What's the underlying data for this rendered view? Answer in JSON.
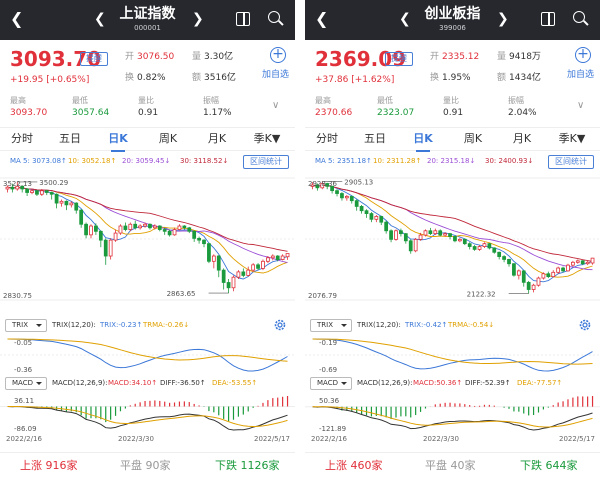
{
  "panels": [
    {
      "title": "上证指数",
      "code": "000001",
      "price": "3093.70",
      "remind_label": "提醒",
      "change": "+19.95",
      "change_pct": "[+0.65%]",
      "open_label": "开",
      "open": "3076.50",
      "turnover_rate_label": "换",
      "turnover_rate": "0.82%",
      "volume_label": "量",
      "volume": "3.30亿",
      "amount_label": "额",
      "amount": "3516亿",
      "add_label": "加自选",
      "high_label": "最高",
      "high": "3093.70",
      "low_label": "最低",
      "low": "3057.64",
      "vol_ratio_label": "量比",
      "vol_ratio": "0.91",
      "amplitude_label": "振幅",
      "amplitude": "1.17%",
      "ma": [
        {
          "label": "MA 5: 3073.08↑",
          "color": "#3c78d8"
        },
        {
          "label": "10: 3052.18↑",
          "color": "#e0a000"
        },
        {
          "label": "20: 3059.45↓",
          "color": "#9b4fd6"
        },
        {
          "label": "30: 3118.52↓",
          "color": "#c0283a"
        }
      ],
      "stat_label": "区间统计",
      "kline_high_label": "3500.29",
      "kline_low_label": "2863.65",
      "axis_top": "3522.13",
      "axis_bottom": "2830.75",
      "trix_btn": "TRIX",
      "trix_params": "TRIX(12,20):",
      "trix_val": "TRIX:-0.23↑",
      "trma_val": "TRMA:-0.26↓",
      "trix_top": "-0.05",
      "trix_bottom": "-0.36",
      "macd_btn": "MACD",
      "macd_params": "MACD(12,26,9):",
      "macd_val": "MACD:34.10↑",
      "diff_val": "DIFF:-36.50↑",
      "dea_val": "DEA:-53.55↑",
      "macd_top": "36.11",
      "macd_bottom": "-86.09",
      "date_start": "2022/2/16",
      "date_mid": "2022/3/30",
      "date_end": "2022/5/17",
      "rise_label": "上涨",
      "rise": "916家",
      "flat_label": "平盘",
      "flat": "90家",
      "fall_label": "下跌",
      "fall": "1126家",
      "k": [
        [
          3460,
          3470,
          3440,
          3480
        ],
        [
          3470,
          3460,
          3440,
          3490
        ],
        [
          3460,
          3475,
          3450,
          3500
        ],
        [
          3475,
          3460,
          3440,
          3480
        ],
        [
          3460,
          3440,
          3420,
          3465
        ],
        [
          3440,
          3450,
          3430,
          3460
        ],
        [
          3450,
          3430,
          3420,
          3455
        ],
        [
          3430,
          3450,
          3420,
          3460
        ],
        [
          3450,
          3440,
          3425,
          3455
        ],
        [
          3440,
          3430,
          3400,
          3445
        ],
        [
          3430,
          3380,
          3350,
          3435
        ],
        [
          3380,
          3390,
          3360,
          3400
        ],
        [
          3390,
          3370,
          3340,
          3395
        ],
        [
          3370,
          3380,
          3355,
          3390
        ],
        [
          3380,
          3340,
          3320,
          3385
        ],
        [
          3340,
          3260,
          3240,
          3345
        ],
        [
          3260,
          3200,
          3180,
          3270
        ],
        [
          3200,
          3250,
          3180,
          3260
        ],
        [
          3250,
          3220,
          3200,
          3265
        ],
        [
          3220,
          3170,
          3130,
          3225
        ],
        [
          3170,
          3080,
          3030,
          3180
        ],
        [
          3080,
          3170,
          3060,
          3180
        ],
        [
          3170,
          3210,
          3160,
          3230
        ],
        [
          3210,
          3250,
          3200,
          3260
        ],
        [
          3250,
          3230,
          3220,
          3270
        ],
        [
          3230,
          3260,
          3220,
          3270
        ],
        [
          3260,
          3240,
          3230,
          3280
        ],
        [
          3240,
          3250,
          3230,
          3260
        ],
        [
          3250,
          3260,
          3240,
          3270
        ],
        [
          3260,
          3240,
          3230,
          3265
        ],
        [
          3240,
          3250,
          3230,
          3260
        ],
        [
          3250,
          3230,
          3220,
          3255
        ],
        [
          3230,
          3220,
          3200,
          3240
        ],
        [
          3220,
          3200,
          3190,
          3230
        ],
        [
          3200,
          3230,
          3195,
          3240
        ],
        [
          3230,
          3250,
          3225,
          3260
        ],
        [
          3250,
          3240,
          3230,
          3255
        ],
        [
          3240,
          3220,
          3210,
          3245
        ],
        [
          3220,
          3180,
          3160,
          3225
        ],
        [
          3180,
          3170,
          3150,
          3190
        ],
        [
          3170,
          3150,
          3130,
          3175
        ],
        [
          3150,
          3050,
          3040,
          3155
        ],
        [
          3050,
          3080,
          3010,
          3090
        ],
        [
          3080,
          3000,
          2960,
          3085
        ],
        [
          3000,
          2930,
          2890,
          3010
        ],
        [
          2930,
          2900,
          2870,
          2950
        ],
        [
          2900,
          2960,
          2880,
          2970
        ],
        [
          2960,
          2990,
          2950,
          3000
        ],
        [
          2990,
          2970,
          2960,
          3010
        ],
        [
          2970,
          3000,
          2965,
          3020
        ],
        [
          3000,
          3030,
          2990,
          3040
        ],
        [
          3030,
          3010,
          3000,
          3040
        ],
        [
          3010,
          3050,
          3000,
          3060
        ],
        [
          3050,
          3070,
          3040,
          3080
        ],
        [
          3070,
          3080,
          3055,
          3090
        ],
        [
          3080,
          3060,
          3050,
          3085
        ],
        [
          3060,
          3080,
          3055,
          3090
        ],
        [
          3076,
          3094,
          3058,
          3094
        ]
      ],
      "ymin": 2830.75,
      "ymax": 3522.13
    },
    {
      "title": "创业板指",
      "code": "399006",
      "price": "2369.09",
      "remind_label": "提醒",
      "change": "+37.86",
      "change_pct": "[+1.62%]",
      "open_label": "开",
      "open": "2335.12",
      "turnover_rate_label": "换",
      "turnover_rate": "1.95%",
      "volume_label": "量",
      "volume": "9418万",
      "amount_label": "额",
      "amount": "1434亿",
      "add_label": "加自选",
      "high_label": "最高",
      "high": "2370.66",
      "low_label": "最低",
      "low": "2323.07",
      "vol_ratio_label": "量比",
      "vol_ratio": "0.91",
      "amplitude_label": "振幅",
      "amplitude": "2.04%",
      "ma": [
        {
          "label": "MA 5: 2351.18↑",
          "color": "#3c78d8"
        },
        {
          "label": "10: 2311.28↑",
          "color": "#e0a000"
        },
        {
          "label": "20: 2315.18↓",
          "color": "#9b4fd6"
        },
        {
          "label": "30: 2400.93↓",
          "color": "#c0283a"
        }
      ],
      "stat_label": "区间统计",
      "kline_high_label": "2905.13",
      "kline_low_label": "2122.32",
      "axis_top": "2928.36",
      "axis_bottom": "2076.79",
      "trix_btn": "TRIX",
      "trix_params": "TRIX(12,20):",
      "trix_val": "TRIX:-0.42↑",
      "trma_val": "TRMA:-0.54↓",
      "trix_top": "-0.19",
      "trix_bottom": "-0.69",
      "macd_btn": "MACD",
      "macd_params": "MACD(12,26,9):",
      "macd_val": "MACD:50.36↑",
      "diff_val": "DIFF:-52.39↑",
      "dea_val": "DEA:-77.57↑",
      "macd_top": "50.36",
      "macd_bottom": "-121.89",
      "date_start": "2022/2/16",
      "date_mid": "2022/3/30",
      "date_end": "2022/5/17",
      "rise_label": "上涨",
      "rise": "460家",
      "flat_label": "平盘",
      "flat": "40家",
      "fall_label": "下跌",
      "fall": "644家",
      "k": [
        [
          2870,
          2880,
          2850,
          2900
        ],
        [
          2880,
          2860,
          2840,
          2890
        ],
        [
          2860,
          2890,
          2850,
          2905
        ],
        [
          2890,
          2870,
          2850,
          2895
        ],
        [
          2870,
          2840,
          2820,
          2875
        ],
        [
          2840,
          2820,
          2800,
          2850
        ],
        [
          2820,
          2790,
          2770,
          2830
        ],
        [
          2790,
          2800,
          2770,
          2810
        ],
        [
          2800,
          2770,
          2750,
          2805
        ],
        [
          2770,
          2730,
          2700,
          2780
        ],
        [
          2730,
          2700,
          2680,
          2740
        ],
        [
          2700,
          2680,
          2650,
          2710
        ],
        [
          2680,
          2640,
          2620,
          2690
        ],
        [
          2640,
          2660,
          2620,
          2670
        ],
        [
          2660,
          2620,
          2600,
          2665
        ],
        [
          2620,
          2560,
          2540,
          2630
        ],
        [
          2560,
          2500,
          2480,
          2570
        ],
        [
          2500,
          2560,
          2490,
          2570
        ],
        [
          2560,
          2540,
          2520,
          2575
        ],
        [
          2540,
          2490,
          2470,
          2545
        ],
        [
          2490,
          2420,
          2400,
          2500
        ],
        [
          2420,
          2500,
          2410,
          2510
        ],
        [
          2500,
          2530,
          2490,
          2545
        ],
        [
          2530,
          2560,
          2520,
          2570
        ],
        [
          2560,
          2540,
          2530,
          2580
        ],
        [
          2540,
          2560,
          2530,
          2575
        ],
        [
          2560,
          2530,
          2520,
          2570
        ],
        [
          2530,
          2540,
          2520,
          2550
        ],
        [
          2540,
          2520,
          2500,
          2545
        ],
        [
          2520,
          2490,
          2480,
          2525
        ],
        [
          2490,
          2500,
          2480,
          2510
        ],
        [
          2500,
          2470,
          2460,
          2505
        ],
        [
          2470,
          2450,
          2430,
          2480
        ],
        [
          2450,
          2430,
          2420,
          2460
        ],
        [
          2430,
          2450,
          2420,
          2460
        ],
        [
          2450,
          2470,
          2440,
          2480
        ],
        [
          2470,
          2440,
          2430,
          2475
        ],
        [
          2440,
          2410,
          2400,
          2445
        ],
        [
          2410,
          2380,
          2360,
          2415
        ],
        [
          2380,
          2360,
          2340,
          2390
        ],
        [
          2360,
          2330,
          2310,
          2365
        ],
        [
          2330,
          2250,
          2240,
          2335
        ],
        [
          2250,
          2280,
          2220,
          2290
        ],
        [
          2280,
          2200,
          2170,
          2285
        ],
        [
          2200,
          2150,
          2122,
          2210
        ],
        [
          2150,
          2180,
          2130,
          2190
        ],
        [
          2180,
          2230,
          2170,
          2240
        ],
        [
          2230,
          2260,
          2220,
          2270
        ],
        [
          2260,
          2240,
          2230,
          2275
        ],
        [
          2240,
          2270,
          2235,
          2285
        ],
        [
          2270,
          2300,
          2260,
          2310
        ],
        [
          2300,
          2280,
          2270,
          2310
        ],
        [
          2280,
          2320,
          2275,
          2330
        ],
        [
          2320,
          2340,
          2310,
          2350
        ],
        [
          2340,
          2350,
          2330,
          2360
        ],
        [
          2350,
          2330,
          2320,
          2355
        ],
        [
          2330,
          2340,
          2320,
          2350
        ],
        [
          2335,
          2369,
          2323,
          2371
        ]
      ],
      "ymin": 2076.79,
      "ymax": 2928.36
    }
  ],
  "colors": {
    "up": "#e0303a",
    "down": "#1a9a3c",
    "blue": "#3c78d8",
    "gold": "#e0a000",
    "purple": "#9b4fd6",
    "maroon": "#c0283a"
  },
  "tabs": [
    "分时",
    "五日",
    "日K",
    "周K",
    "月K",
    "季K▼"
  ],
  "icons": [
    "back-arrow-icon",
    "prev-arrow-icon",
    "next-arrow-icon",
    "split-screen-icon",
    "search-icon",
    "add-circle-icon",
    "chevron-down-icon",
    "settings-gear-icon"
  ]
}
